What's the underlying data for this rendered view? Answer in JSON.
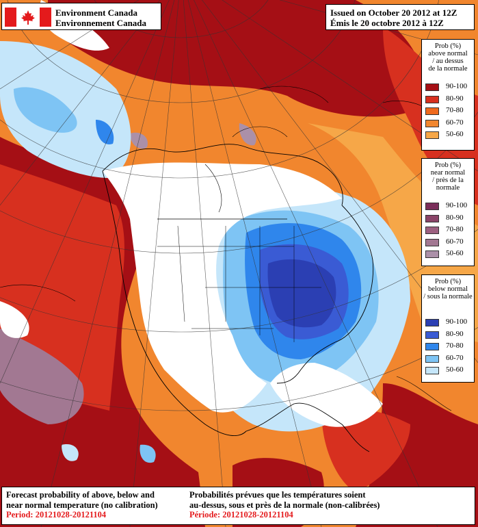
{
  "header": {
    "org_en": "Environment Canada",
    "org_fr": "Environnement Canada",
    "issued_en": "Issued on October 20 2012 at 12Z",
    "issued_fr": "Émis le 20 octobre 2012 à 12Z"
  },
  "legends": {
    "above": {
      "title": "Prob (%)\nabove normal\n/ au dessus\nde la normale",
      "items": [
        {
          "label": "90-100",
          "color": "#a50f15"
        },
        {
          "label": "80-90",
          "color": "#d7301f"
        },
        {
          "label": "70-80",
          "color": "#ef6a1e"
        },
        {
          "label": "60-70",
          "color": "#f1862e"
        },
        {
          "label": "50-60",
          "color": "#f6a748"
        }
      ]
    },
    "near": {
      "title": "Prob (%)\nnear normal\n/ près de la\nnormale",
      "items": [
        {
          "label": "90-100",
          "color": "#7a2e5a"
        },
        {
          "label": "80-90",
          "color": "#8a4468"
        },
        {
          "label": "70-80",
          "color": "#9c6080"
        },
        {
          "label": "60-70",
          "color": "#a27892"
        },
        {
          "label": "50-60",
          "color": "#ab90a8"
        }
      ]
    },
    "below": {
      "title": "Prob (%)\nbelow normal\n/ sous la normale",
      "items": [
        {
          "label": "90-100",
          "color": "#2b3fb3"
        },
        {
          "label": "80-90",
          "color": "#3a5bd4"
        },
        {
          "label": "70-80",
          "color": "#2f86ec"
        },
        {
          "label": "60-70",
          "color": "#7ec4f4"
        },
        {
          "label": "50-60",
          "color": "#c5e6fa"
        }
      ]
    }
  },
  "footer": {
    "en_line1": "Forecast probability of above, below and",
    "en_line2": "near normal temperature (no calibration)",
    "en_period": "Period: 20121028-20121104",
    "fr_line1": "Probabilités prévues que les températures soient",
    "fr_line2": "au-dessus, sous et près de la normale (non-calibrées)",
    "fr_period": "Période: 20121028-20121104"
  },
  "map": {
    "type": "probabilistic temperature forecast map",
    "region": "North America",
    "flag_icon": "canada-flag-icon"
  }
}
